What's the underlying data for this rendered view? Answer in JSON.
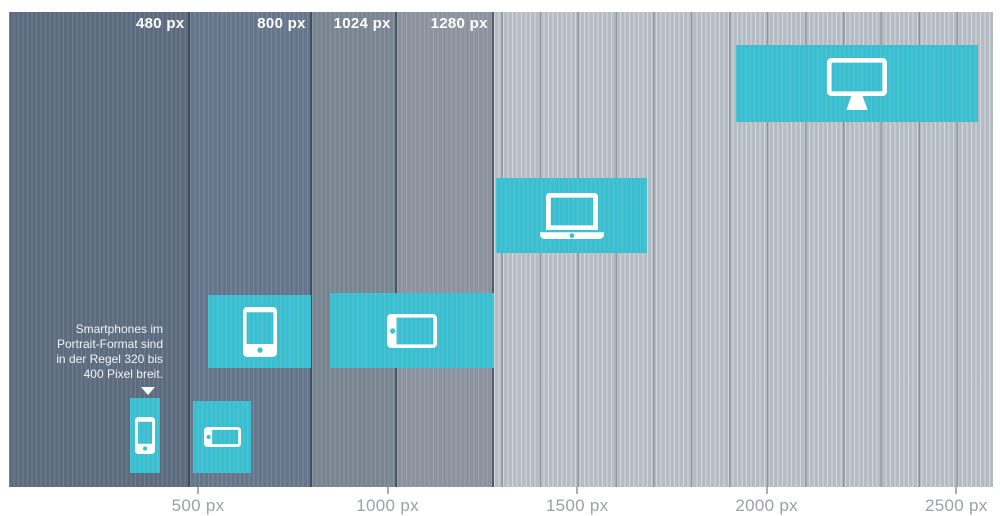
{
  "chart": {
    "type": "diagram-breakpoint-ranges",
    "unit": "px",
    "accent_color": "#3bbecf",
    "bands": [
      {
        "label": "480 px",
        "from": 0,
        "to": 480,
        "color": "#5c6b7e"
      },
      {
        "label": "800 px",
        "from": 480,
        "to": 800,
        "color": "#66768a"
      },
      {
        "label": "1024 px",
        "from": 800,
        "to": 1024,
        "color": "#7a8592"
      },
      {
        "label": "1280 px",
        "from": 1024,
        "to": 1280,
        "color": "#8c939e"
      },
      {
        "label": "",
        "from": 1280,
        "to": 2597,
        "color": "#b6bcc3"
      }
    ],
    "devices": [
      {
        "id": "smartphone-portrait",
        "icon": "smartphone-portrait-icon",
        "from": 320,
        "to": 400
      },
      {
        "id": "smartphone-landscape",
        "icon": "smartphone-landscape-icon",
        "from": 487,
        "to": 641
      },
      {
        "id": "tablet-portrait",
        "icon": "tablet-portrait-icon",
        "from": 527,
        "to": 799
      },
      {
        "id": "tablet-landscape",
        "icon": "tablet-landscape-icon",
        "from": 848,
        "to": 1281
      },
      {
        "id": "laptop",
        "icon": "laptop-icon",
        "from": 1287,
        "to": 1684
      },
      {
        "id": "desktop",
        "icon": "desktop-icon",
        "from": 1920,
        "to": 2558
      }
    ],
    "axis_ticks": [
      {
        "value": 500,
        "label": "500 px"
      },
      {
        "value": 1000,
        "label": "1000 px"
      },
      {
        "value": 1500,
        "label": "1500 px"
      },
      {
        "value": 2000,
        "label": "2000 px"
      },
      {
        "value": 2500,
        "label": "2500 px"
      }
    ]
  },
  "annotation": {
    "text": "Smartphones im\nPortrait-Format sind\nin der Regel 320 bis\n400 Pixel breit."
  }
}
